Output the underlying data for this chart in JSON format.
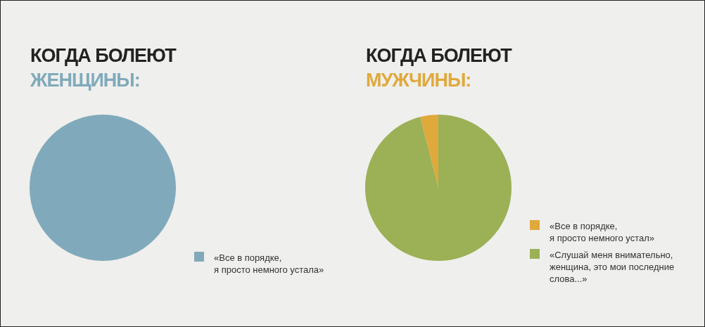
{
  "chart_data": [
    {
      "type": "pie",
      "title": "КОГДА БОЛЕЮТ",
      "subtitle": "ЖЕНЩИНЫ:",
      "categories": [
        "«Все в порядке,\nя просто немного устала»"
      ],
      "values": [
        100
      ],
      "colors": [
        "#80aabb"
      ],
      "legend": "bottom right"
    },
    {
      "type": "pie",
      "title": "КОГДА БОЛЕЮТ",
      "subtitle": "МУЖЧИНЫ:",
      "categories": [
        "«Все в порядке,\nя просто немного устал»",
        "«Слушай меня внимательно,\nженщина, это мои последние\nслова...»"
      ],
      "values": [
        4,
        96
      ],
      "colors": [
        "#e0a93c",
        "#9cb056"
      ],
      "legend": "bottom right"
    }
  ]
}
